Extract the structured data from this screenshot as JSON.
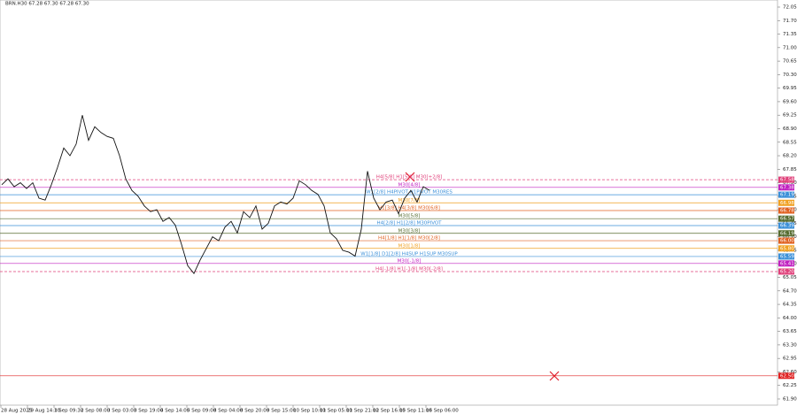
{
  "chart_data": {
    "type": "line",
    "title": "BRN.H30 67.28 67.30 67.28 67.30",
    "x_labels": [
      "28 Aug 2025",
      "29 Aug 14:30",
      "1 Sep 09:30",
      "2 Sep 08:00",
      "3 Sep 03:00",
      "3 Sep 19:00",
      "4 Sep 14:00",
      "5 Sep 09:00",
      "8 Sep 04:00",
      "8 Sep 20:00",
      "9 Sep 15:00",
      "10 Sep 10:00",
      "11 Sep 05:00",
      "11 Sep 21:00",
      "12 Sep 16:00",
      "15 Sep 11:00",
      "16 Sep 06:00"
    ],
    "color": "#111111",
    "values": [
      67.45,
      67.6,
      67.4,
      67.5,
      67.35,
      67.5,
      67.1,
      67.05,
      67.45,
      67.9,
      68.4,
      68.2,
      68.5,
      69.25,
      68.6,
      68.95,
      68.8,
      68.7,
      68.65,
      68.2,
      67.6,
      67.3,
      67.15,
      66.9,
      66.75,
      66.8,
      66.5,
      66.6,
      66.4,
      65.9,
      65.35,
      65.15,
      65.5,
      65.8,
      66.1,
      66.0,
      66.35,
      66.5,
      66.2,
      66.75,
      66.6,
      66.9,
      66.3,
      66.45,
      66.9,
      67.0,
      66.95,
      67.1,
      67.55,
      67.45,
      67.3,
      67.2,
      66.9,
      66.2,
      66.05,
      65.75,
      65.7,
      65.6,
      66.3,
      67.8,
      67.1,
      66.8,
      67.0,
      67.05,
      66.7,
      67.1,
      67.3,
      67.0,
      67.4,
      67.3
    ],
    "ylim": [
      61.9,
      72.05
    ],
    "yticks": [
      72.05,
      {
        "value": 71.7,
        "label": "71.70"
      },
      71.35,
      {
        "value": 71.0,
        "label": "71.00"
      },
      70.65,
      {
        "value": 70.3,
        "label": "70.30"
      },
      69.95,
      {
        "value": 69.6,
        "label": "69.60"
      },
      69.25,
      {
        "value": 68.9,
        "label": "68.90"
      },
      68.55,
      {
        "value": 68.2,
        "label": "68.20"
      },
      67.85,
      {
        "value": 67.5,
        "label": "67.50"
      },
      67.15,
      {
        "value": 66.8,
        "label": "66.80"
      },
      66.45,
      {
        "value": 66.1,
        "label": "66.10"
      },
      65.75,
      {
        "value": 65.4,
        "label": "65.40"
      },
      65.05,
      {
        "value": 64.7,
        "label": "64.70"
      },
      64.35,
      {
        "value": 64.0,
        "label": "64.00"
      },
      63.65,
      {
        "value": 63.3,
        "label": "63.30"
      },
      62.95,
      {
        "value": 62.6,
        "label": "62.60"
      },
      62.25,
      {
        "value": 61.9,
        "label": "61.90"
      }
    ],
    "levels": [
      {
        "label": "H4[5/8] H1[5/8] M30[+2/8]",
        "value": 67.58,
        "value_label": "67.58",
        "color": "#e0407a",
        "dashed": true
      },
      {
        "label": "M30[4/8]",
        "value": 67.38,
        "value_label": "67.38",
        "color": "#c020c0",
        "dashed": false
      },
      {
        "label": "W1[2/8] H4PIVOT H1PIVOT M30RES",
        "value": 67.19,
        "value_label": "67.19",
        "color": "#3a8fd8",
        "dashed": false
      },
      {
        "label": "M30[7/8]",
        "value": 66.98,
        "value_label": "66.98",
        "color": "#f0a020",
        "dashed": false
      },
      {
        "label": "H1[3/8] H4[3/8] M30[6/8]",
        "value": 66.78,
        "value_label": "66.78",
        "color": "#e06020",
        "dashed": false
      },
      {
        "label": "M30[5/8]",
        "value": 66.57,
        "value_label": "66.57",
        "color": "#556b2f",
        "dashed": false
      },
      {
        "label": "H4[2/8] H1[2/8] M30PIVOT",
        "value": 66.39,
        "value_label": "66.39",
        "color": "#3a8fd8",
        "dashed": false
      },
      {
        "label": "M30[3/8]",
        "value": 66.19,
        "value_label": "66.19",
        "color": "#556b2f",
        "dashed": false
      },
      {
        "label": "H4[1/8] H1[1/8] M30[2/8]",
        "value": 66.0,
        "value_label": "66.00",
        "color": "#e06020",
        "dashed": false
      },
      {
        "label": "M30[1/8]",
        "value": 65.8,
        "value_label": "65.80",
        "color": "#f0a020",
        "dashed": false
      },
      {
        "label": "W1[1/8] D1[2/8] H4SUP H1SUP M30SUP",
        "value": 65.59,
        "value_label": "65.59",
        "color": "#3a8fd8",
        "dashed": false
      },
      {
        "label": "M30[-1/8]",
        "value": 65.41,
        "value_label": "65.41",
        "color": "#c020c0",
        "dashed": false
      },
      {
        "label": "H4[-1/8] H1[-1/8] M30[-2/8]",
        "value": 65.2,
        "value_label": "65.20",
        "color": "#e0407a",
        "dashed": true
      },
      {
        "value": 62.5,
        "value_label": "62.50",
        "color": "#e02020",
        "dashed": false
      }
    ]
  }
}
